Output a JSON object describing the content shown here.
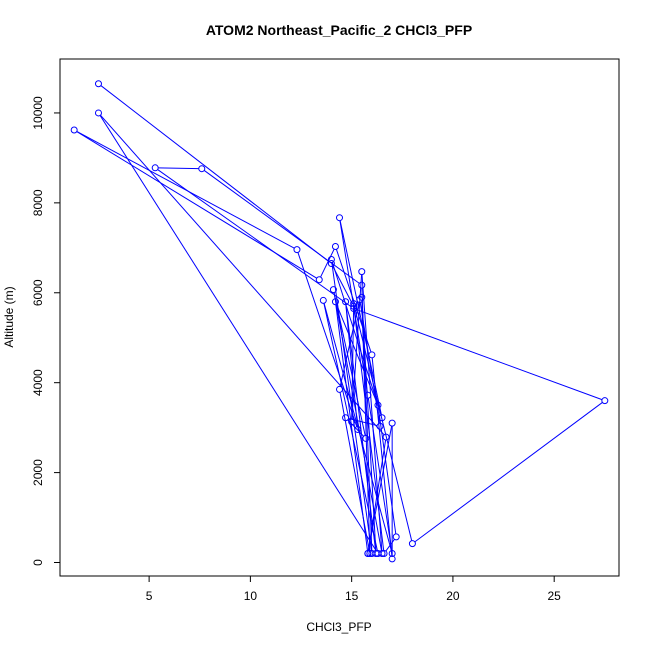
{
  "chart_data": {
    "type": "line",
    "title": "ATOM2 Northeast_Pacific_2 CHCl3_PFP",
    "xlabel": "CHCl3_PFP",
    "ylabel": "Altitude (m)",
    "xlim": [
      0.6,
      28.2
    ],
    "ylim": [
      -300,
      11200
    ],
    "x_ticks": [
      5,
      10,
      15,
      20,
      25
    ],
    "x_tick_labels": [
      "5",
      "10",
      "15",
      "20",
      "25"
    ],
    "y_ticks": [
      0,
      2000,
      4000,
      6000,
      8000,
      10000
    ],
    "y_tick_labels": [
      "0",
      "2000",
      "4000",
      "6000",
      "8000",
      "10000"
    ],
    "grid": false,
    "legend": "none",
    "color": "#0000ff",
    "marker": "open-circle",
    "series": [
      {
        "points": [
          [
            2.5,
            10650
          ],
          [
            14.0,
            6650
          ],
          [
            15.1,
            5700
          ],
          [
            16.6,
            200
          ],
          [
            17.2,
            570
          ],
          [
            16.3,
            3500
          ],
          [
            14.2,
            5800
          ],
          [
            15.8,
            200
          ],
          [
            17.0,
            3100
          ],
          [
            17.0,
            80
          ],
          [
            16.0,
            4620
          ],
          [
            14.2,
            7030
          ],
          [
            13.4,
            6290
          ],
          [
            1.3,
            9620
          ],
          [
            12.3,
            6960
          ],
          [
            15.3,
            2960
          ],
          [
            14.7,
            5800
          ],
          [
            16.2,
            200
          ],
          [
            15.5,
            5900
          ],
          [
            15.9,
            200
          ],
          [
            14.4,
            3850
          ],
          [
            15.4,
            5850
          ],
          [
            16.4,
            3030
          ],
          [
            14.7,
            3220
          ],
          [
            15.7,
            2760
          ],
          [
            14.1,
            6070
          ],
          [
            16.5,
            200
          ],
          [
            15.5,
            6470
          ],
          [
            15.0,
            3130
          ],
          [
            15.1,
            5760
          ],
          [
            18.0,
            420
          ],
          [
            27.5,
            3600
          ],
          [
            15.1,
            5650
          ],
          [
            5.3,
            8780
          ],
          [
            7.6,
            8760
          ],
          [
            15.5,
            6170
          ],
          [
            16.0,
            200
          ],
          [
            14.0,
            6740
          ],
          [
            16.5,
            3220
          ],
          [
            14.4,
            7670
          ],
          [
            15.8,
            3720
          ],
          [
            17.0,
            200
          ],
          [
            13.6,
            5830
          ],
          [
            16.3,
            200
          ],
          [
            2.5,
            10000
          ],
          [
            16.7,
            2790
          ],
          [
            15.8,
            200
          ]
        ]
      }
    ]
  }
}
